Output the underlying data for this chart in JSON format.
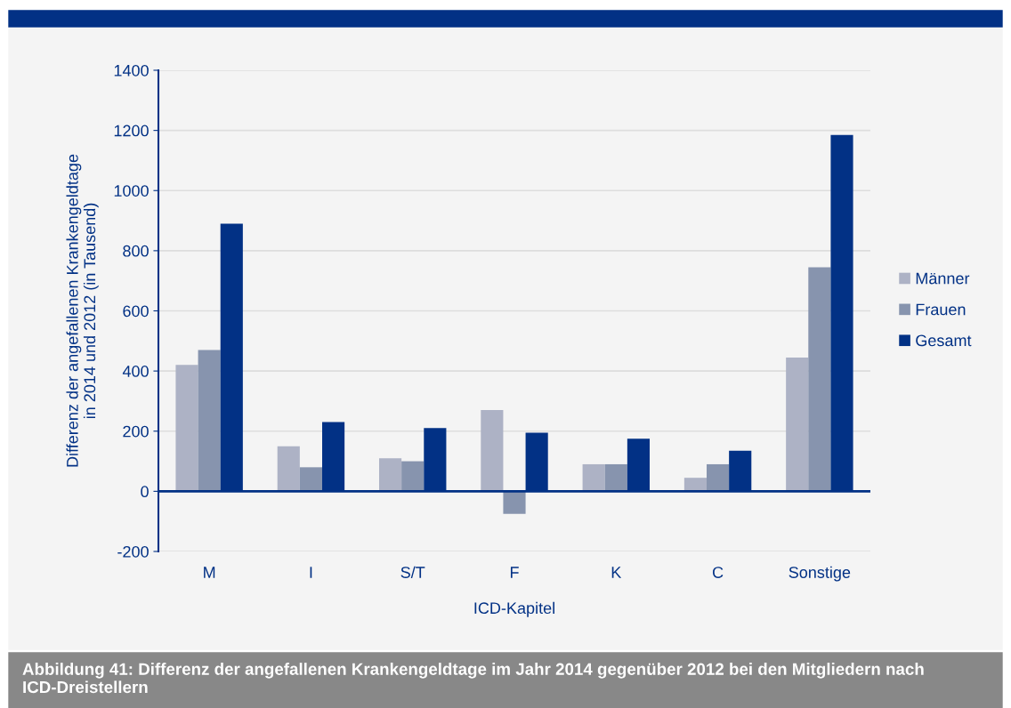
{
  "chart_data": {
    "type": "bar",
    "xlabel": "ICD-Kapitel",
    "ylabel": "Differenz der angefallenen Krankengeldtage\nin 2014 und 2012 (in Tausend)",
    "categories": [
      "M",
      "I",
      "S/T",
      "F",
      "K",
      "C",
      "Sonstige"
    ],
    "series": [
      {
        "name": "Männer",
        "color": "#adb2c5",
        "values": [
          420,
          150,
          110,
          270,
          90,
          45,
          445
        ]
      },
      {
        "name": "Frauen",
        "color": "#8794ae",
        "values": [
          470,
          80,
          100,
          -75,
          90,
          90,
          745
        ]
      },
      {
        "name": "Gesamt",
        "color": "#023185",
        "values": [
          890,
          230,
          210,
          195,
          175,
          135,
          1185
        ]
      }
    ],
    "ylim": [
      -200,
      1400
    ],
    "yticks": [
      {
        "value": -200,
        "label": "-200"
      },
      0,
      200,
      400,
      600,
      800,
      1000,
      1200,
      1400
    ],
    "grid": "y",
    "legend": "right",
    "ref_lines": [
      {
        "axis": "y",
        "value": 0,
        "color": "#023185"
      }
    ],
    "annotations": [
      "Abbildung 41: Differenz der angefallenen Krankengeldtage im Jahr 2014 gegenüber 2012 bei den Mitgliedern nach ICD-Dreistellern"
    ]
  }
}
